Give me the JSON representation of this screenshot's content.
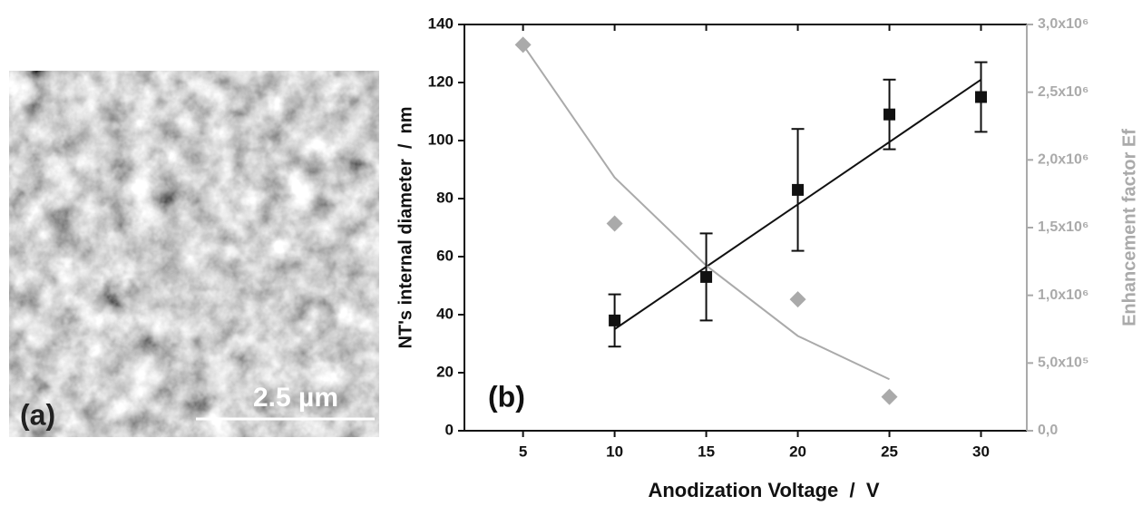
{
  "panel_a": {
    "label": "(a)",
    "scale_bar": "2.5 µm"
  },
  "chart_data": {
    "type": "scatter",
    "panel_label": "(b)",
    "x_label": "Anodization Voltage  /  V",
    "y_label": "NT's internal diameter  /  nm",
    "y2_label": "Enhancement factor Ef",
    "xlim": [
      1.8,
      32.5
    ],
    "xticks": [
      5,
      10,
      15,
      20,
      25,
      30
    ],
    "ylim": [
      0,
      140
    ],
    "yticks": [
      0,
      20,
      40,
      60,
      80,
      100,
      120,
      140
    ],
    "y2lim": [
      0,
      3000000
    ],
    "y2ticks": [
      {
        "value": 0,
        "label": "0,0"
      },
      {
        "value": 500000,
        "label": "5,0x10⁵"
      },
      {
        "value": 1000000,
        "label": "1,0x10⁶"
      },
      {
        "value": 1500000,
        "label": "1,5x10⁶"
      },
      {
        "value": 2000000,
        "label": "2,0x10⁶"
      },
      {
        "value": 2500000,
        "label": "2,5x10⁶"
      },
      {
        "value": 3000000,
        "label": "3,0x10⁶"
      }
    ],
    "series": [
      {
        "color": "#111111",
        "marker": "square",
        "x": [
          10,
          15,
          20,
          25,
          30
        ],
        "values": [
          38,
          53,
          83,
          109,
          115
        ],
        "errors": [
          9,
          15,
          21,
          12,
          12
        ]
      },
      {
        "color": "#aaaaaa",
        "marker": "diamond",
        "axis": "y2",
        "x": [
          5,
          10,
          20,
          25
        ],
        "values": [
          2850000,
          1530000,
          970000,
          250000
        ]
      }
    ],
    "fits": [
      {
        "color": "#111111",
        "x": [
          10,
          30
        ],
        "values": [
          35,
          121
        ]
      },
      {
        "color": "#aaaaaa",
        "axis": "y2",
        "x": [
          5,
          10,
          15,
          20,
          25
        ],
        "values": [
          2850000,
          1870000,
          1220000,
          700000,
          380000
        ]
      }
    ]
  }
}
